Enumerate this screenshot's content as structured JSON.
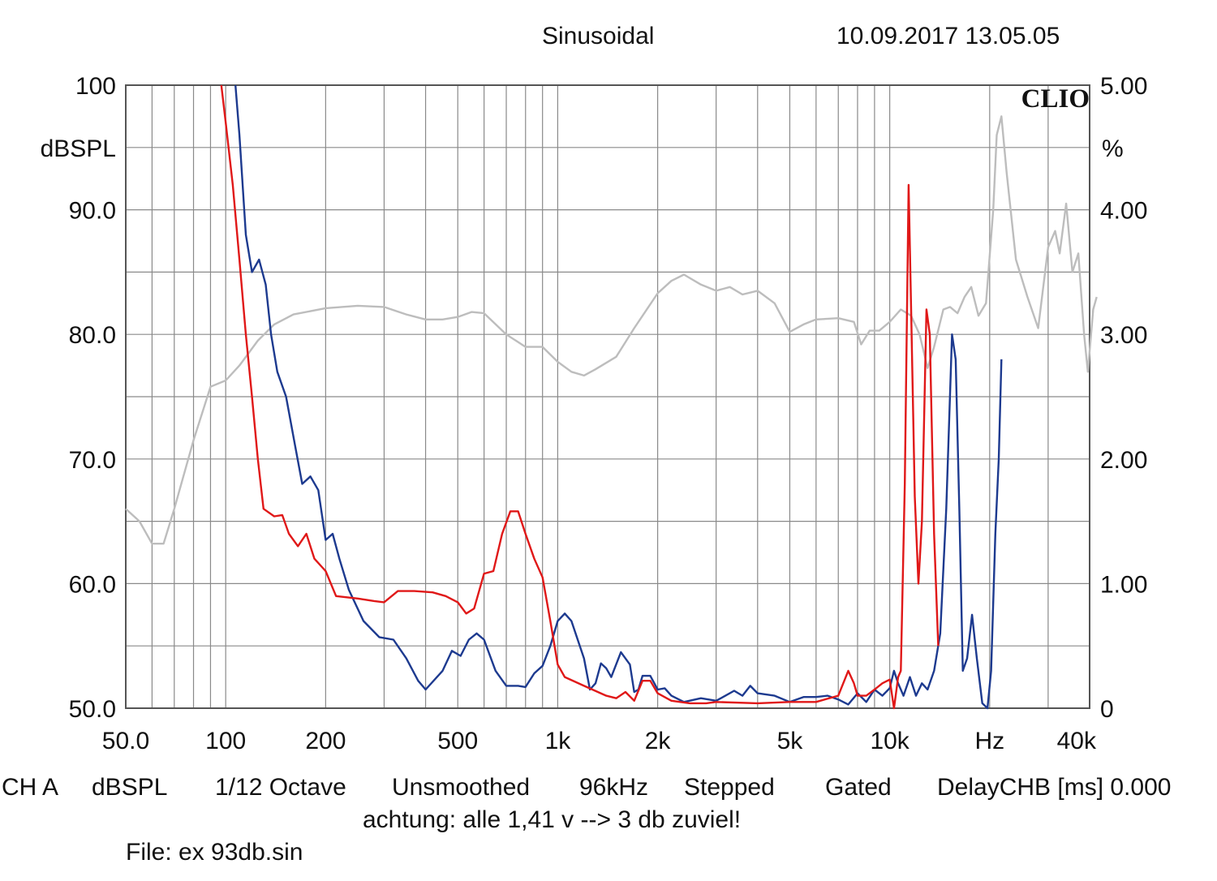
{
  "header": {
    "mode": "Sinusoidal",
    "datetime": "10.09.2017 13.05.05",
    "brand": "CLIO"
  },
  "footer": {
    "ch": "CH A",
    "unit": "dBSPL",
    "octave": "1/12 Octave",
    "smoothing": "Unsmoothed",
    "rate": "96kHz",
    "stepping": "Stepped",
    "gating": "Gated",
    "delay": "DelayCHB [ms] 0.000",
    "note": "achtung: alle 1,41 v --> 3 db zuviel!",
    "file": "File: ex 93db.sin"
  },
  "colors": {
    "red": "#e01818",
    "blue": "#1d3a8f",
    "gray": "#bdbdbd",
    "grid": "#8a8a8a",
    "frame": "#555555"
  },
  "chart_data": {
    "type": "line",
    "xscale": "log",
    "xlim": [
      50,
      40000
    ],
    "x_tick_labels": [
      {
        "f": 50,
        "label": "50.0"
      },
      {
        "f": 100,
        "label": "100"
      },
      {
        "f": 200,
        "label": "200"
      },
      {
        "f": 500,
        "label": "500"
      },
      {
        "f": 1000,
        "label": "1k"
      },
      {
        "f": 2000,
        "label": "2k"
      },
      {
        "f": 5000,
        "label": "5k"
      },
      {
        "f": 10000,
        "label": "10k"
      },
      {
        "f": 20000,
        "label": "Hz"
      },
      {
        "f": 40000,
        "label": "40k"
      }
    ],
    "ylim": [
      50,
      100
    ],
    "ylabel": "dBSPL",
    "y_tick_labels": [
      {
        "v": 100,
        "label": "100"
      },
      {
        "v": 90,
        "label": "90.0"
      },
      {
        "v": 80,
        "label": "80.0"
      },
      {
        "v": 70,
        "label": "70.0"
      },
      {
        "v": 60,
        "label": "60.0"
      },
      {
        "v": 50,
        "label": "50.0"
      }
    ],
    "y2lim": [
      0,
      5
    ],
    "y2label": "%",
    "y2_tick_labels": [
      {
        "v": 5,
        "label": "5.00"
      },
      {
        "v": 4,
        "label": "4.00"
      },
      {
        "v": 3,
        "label": "3.00"
      },
      {
        "v": 2,
        "label": "2.00"
      },
      {
        "v": 1,
        "label": "1.00"
      },
      {
        "v": 0,
        "label": "0"
      }
    ],
    "grid": true,
    "series": [
      {
        "color": "#bdbdbd",
        "axis": "left",
        "points": [
          [
            50,
            66
          ],
          [
            55,
            65
          ],
          [
            60,
            63.2
          ],
          [
            65,
            63.2
          ],
          [
            70,
            66
          ],
          [
            80,
            71.5
          ],
          [
            90,
            75.8
          ],
          [
            100,
            76.3
          ],
          [
            110,
            77.5
          ],
          [
            125,
            79.5
          ],
          [
            140,
            80.8
          ],
          [
            160,
            81.6
          ],
          [
            200,
            82.1
          ],
          [
            250,
            82.3
          ],
          [
            300,
            82.2
          ],
          [
            350,
            81.6
          ],
          [
            400,
            81.2
          ],
          [
            450,
            81.2
          ],
          [
            500,
            81.4
          ],
          [
            550,
            81.8
          ],
          [
            600,
            81.7
          ],
          [
            700,
            80
          ],
          [
            800,
            79
          ],
          [
            900,
            79
          ],
          [
            1000,
            77.8
          ],
          [
            1100,
            77
          ],
          [
            1200,
            76.7
          ],
          [
            1300,
            77.2
          ],
          [
            1500,
            78.2
          ],
          [
            1700,
            80.5
          ],
          [
            2000,
            83.3
          ],
          [
            2200,
            84.3
          ],
          [
            2400,
            84.8
          ],
          [
            2700,
            84
          ],
          [
            3000,
            83.5
          ],
          [
            3300,
            83.8
          ],
          [
            3600,
            83.2
          ],
          [
            4000,
            83.5
          ],
          [
            4500,
            82.5
          ],
          [
            5000,
            80.2
          ],
          [
            5500,
            80.8
          ],
          [
            6000,
            81.2
          ],
          [
            7000,
            81.3
          ],
          [
            7800,
            81
          ],
          [
            8200,
            79.2
          ],
          [
            8700,
            80.3
          ],
          [
            9300,
            80.3
          ],
          [
            10000,
            81
          ],
          [
            10800,
            82
          ],
          [
            11600,
            81.5
          ],
          [
            12300,
            80
          ],
          [
            13000,
            77.3
          ],
          [
            13600,
            79
          ],
          [
            14500,
            82
          ],
          [
            15200,
            82.2
          ],
          [
            16000,
            81.7
          ],
          [
            16800,
            83
          ],
          [
            17600,
            83.8
          ],
          [
            18500,
            81.5
          ],
          [
            19500,
            82.5
          ],
          [
            20500,
            90
          ],
          [
            21000,
            96
          ],
          [
            21700,
            97.5
          ],
          [
            22500,
            93
          ],
          [
            24000,
            86
          ],
          [
            26000,
            83
          ],
          [
            28000,
            80.5
          ],
          [
            30000,
            87
          ],
          [
            31500,
            88.3
          ],
          [
            32500,
            86.5
          ],
          [
            34000,
            90.5
          ],
          [
            35500,
            85
          ],
          [
            37000,
            86.5
          ],
          [
            38500,
            80
          ],
          [
            39500,
            77
          ],
          [
            41000,
            82
          ],
          [
            42000,
            83
          ]
        ]
      },
      {
        "color": "#1d3a8f",
        "axis": "left",
        "points": [
          [
            107,
            100
          ],
          [
            110,
            96
          ],
          [
            115,
            88
          ],
          [
            120,
            85
          ],
          [
            126,
            86
          ],
          [
            132,
            84
          ],
          [
            137,
            80
          ],
          [
            143,
            77
          ],
          [
            152,
            75
          ],
          [
            162,
            71
          ],
          [
            170,
            68
          ],
          [
            180,
            68.6
          ],
          [
            190,
            67.5
          ],
          [
            200,
            63.5
          ],
          [
            210,
            64
          ],
          [
            220,
            62
          ],
          [
            235,
            59.5
          ],
          [
            260,
            57
          ],
          [
            290,
            55.7
          ],
          [
            320,
            55.5
          ],
          [
            350,
            54
          ],
          [
            380,
            52.2
          ],
          [
            400,
            51.5
          ],
          [
            450,
            53
          ],
          [
            480,
            54.6
          ],
          [
            510,
            54.2
          ],
          [
            540,
            55.5
          ],
          [
            570,
            56
          ],
          [
            600,
            55.5
          ],
          [
            650,
            53
          ],
          [
            700,
            51.8
          ],
          [
            760,
            51.8
          ],
          [
            800,
            51.7
          ],
          [
            850,
            52.8
          ],
          [
            900,
            53.4
          ],
          [
            950,
            55
          ],
          [
            1000,
            57
          ],
          [
            1050,
            57.6
          ],
          [
            1100,
            57
          ],
          [
            1200,
            54
          ],
          [
            1250,
            51.5
          ],
          [
            1300,
            52
          ],
          [
            1350,
            53.6
          ],
          [
            1400,
            53.2
          ],
          [
            1450,
            52.5
          ],
          [
            1550,
            54.5
          ],
          [
            1650,
            53.5
          ],
          [
            1700,
            51.3
          ],
          [
            1750,
            51.5
          ],
          [
            1800,
            52.6
          ],
          [
            1900,
            52.6
          ],
          [
            2000,
            51.5
          ],
          [
            2100,
            51.6
          ],
          [
            2200,
            51
          ],
          [
            2400,
            50.5
          ],
          [
            2700,
            50.8
          ],
          [
            3000,
            50.6
          ],
          [
            3200,
            51
          ],
          [
            3400,
            51.4
          ],
          [
            3600,
            51
          ],
          [
            3800,
            51.8
          ],
          [
            4000,
            51.2
          ],
          [
            4500,
            51
          ],
          [
            5000,
            50.5
          ],
          [
            5500,
            50.9
          ],
          [
            6000,
            50.9
          ],
          [
            6500,
            51
          ],
          [
            7000,
            50.7
          ],
          [
            7500,
            50.3
          ],
          [
            8000,
            51.2
          ],
          [
            8500,
            50.5
          ],
          [
            9000,
            51.5
          ],
          [
            9500,
            51
          ],
          [
            10000,
            51.6
          ],
          [
            10300,
            53
          ],
          [
            10600,
            52
          ],
          [
            11000,
            51
          ],
          [
            11500,
            52.5
          ],
          [
            12000,
            51
          ],
          [
            12500,
            52
          ],
          [
            13000,
            51.5
          ],
          [
            13600,
            53
          ],
          [
            14200,
            56
          ],
          [
            14800,
            66
          ],
          [
            15400,
            80
          ],
          [
            15800,
            78
          ],
          [
            16200,
            66
          ],
          [
            16600,
            53
          ],
          [
            17100,
            54
          ],
          [
            17700,
            57.5
          ],
          [
            18300,
            54
          ],
          [
            19000,
            50.4
          ],
          [
            19700,
            50
          ],
          [
            20200,
            53
          ],
          [
            20800,
            64
          ],
          [
            21300,
            70
          ],
          [
            21700,
            78
          ]
        ]
      },
      {
        "color": "#e01818",
        "axis": "left",
        "points": [
          [
            97,
            100
          ],
          [
            100,
            97
          ],
          [
            105,
            92
          ],
          [
            110,
            86
          ],
          [
            115,
            80
          ],
          [
            120,
            75
          ],
          [
            125,
            70
          ],
          [
            130,
            66
          ],
          [
            140,
            65.4
          ],
          [
            148,
            65.5
          ],
          [
            155,
            64
          ],
          [
            165,
            63
          ],
          [
            175,
            64
          ],
          [
            185,
            62
          ],
          [
            200,
            61
          ],
          [
            215,
            59
          ],
          [
            250,
            58.8
          ],
          [
            280,
            58.6
          ],
          [
            300,
            58.5
          ],
          [
            330,
            59.4
          ],
          [
            370,
            59.4
          ],
          [
            420,
            59.3
          ],
          [
            460,
            59
          ],
          [
            500,
            58.5
          ],
          [
            530,
            57.6
          ],
          [
            560,
            58
          ],
          [
            600,
            60.8
          ],
          [
            640,
            61
          ],
          [
            680,
            64
          ],
          [
            720,
            65.8
          ],
          [
            760,
            65.8
          ],
          [
            800,
            64
          ],
          [
            850,
            62
          ],
          [
            900,
            60.5
          ],
          [
            950,
            57
          ],
          [
            1000,
            53.5
          ],
          [
            1050,
            52.5
          ],
          [
            1200,
            51.8
          ],
          [
            1400,
            51
          ],
          [
            1500,
            50.8
          ],
          [
            1600,
            51.3
          ],
          [
            1700,
            50.6
          ],
          [
            1800,
            52.2
          ],
          [
            1900,
            52.2
          ],
          [
            2000,
            51.2
          ],
          [
            2200,
            50.6
          ],
          [
            2500,
            50.4
          ],
          [
            2800,
            50.4
          ],
          [
            3000,
            50.5
          ],
          [
            4000,
            50.4
          ],
          [
            5000,
            50.5
          ],
          [
            6000,
            50.5
          ],
          [
            7000,
            51
          ],
          [
            7500,
            53
          ],
          [
            7800,
            52
          ],
          [
            8000,
            51
          ],
          [
            8500,
            51
          ],
          [
            9000,
            51.5
          ],
          [
            9500,
            52
          ],
          [
            10000,
            52.3
          ],
          [
            10300,
            50
          ],
          [
            10600,
            52.5
          ],
          [
            10800,
            53
          ],
          [
            11100,
            68
          ],
          [
            11400,
            92
          ],
          [
            11600,
            82
          ],
          [
            11900,
            67
          ],
          [
            12200,
            60
          ],
          [
            12500,
            65
          ],
          [
            12900,
            82
          ],
          [
            13200,
            80
          ],
          [
            13600,
            64
          ],
          [
            14000,
            55
          ]
        ]
      }
    ]
  }
}
